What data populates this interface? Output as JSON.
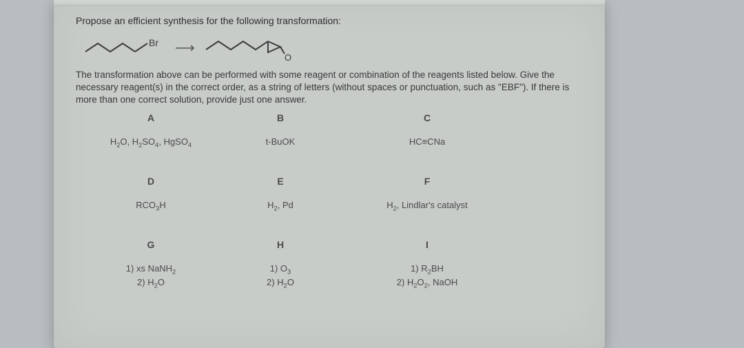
{
  "prompt": "Propose an efficient synthesis for the following transformation:",
  "scheme": {
    "start_label": "Br",
    "arrow": "⟶",
    "end_label": "O",
    "line_color": "#3d3d3d",
    "stroke_width": 2
  },
  "description": "The transformation above can be performed with some reagent or combination of the reagents listed below. Give the necessary reagent(s) in the correct order, as a string of letters (without spaces or punctuation, such as \"EBF\"). If there is more than one correct solution, provide just one answer.",
  "grid": {
    "headers_color": "#4a4a4a",
    "text_color": "#4a4a4a",
    "font_size": 13,
    "rows": [
      {
        "A": {
          "hdr": "A",
          "html": "H<sub>2</sub>O, H<sub>2</sub>SO<sub>4</sub>, HgSO<sub>4</sub>"
        },
        "B": {
          "hdr": "B",
          "html": "t-BuOK"
        },
        "C": {
          "hdr": "C",
          "html": "HC≡CNa"
        }
      },
      {
        "A": {
          "hdr": "D",
          "html": "RCO<sub>3</sub>H"
        },
        "B": {
          "hdr": "E",
          "html": "H<sub>2</sub>, Pd"
        },
        "C": {
          "hdr": "F",
          "html": "H<sub>2</sub>, Lindlar's catalyst"
        }
      },
      {
        "A": {
          "hdr": "G",
          "html": "1) xs NaNH<sub>2</sub><br>2) H<sub>2</sub>O"
        },
        "B": {
          "hdr": "H",
          "html": "1) O<sub>3</sub><br>2) H<sub>2</sub>O"
        },
        "C": {
          "hdr": "I",
          "html": "1) R<sub>2</sub>BH<br>2) H<sub>2</sub>O<sub>2</sub>, NaOH"
        }
      }
    ]
  },
  "colors": {
    "page_bg": "#c7ccc9",
    "outer_bg": "#b8bdbf",
    "text": "#3b3b3b"
  }
}
